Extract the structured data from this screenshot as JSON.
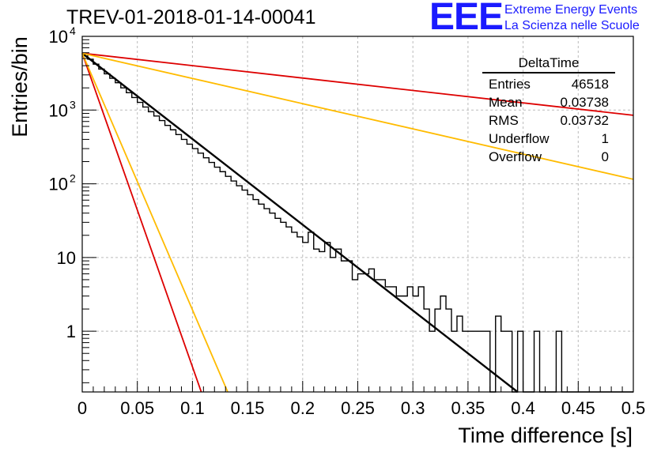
{
  "chart_data": {
    "type": "line",
    "title": "TREV-01-2018-01-14-00041",
    "xlabel": "Time difference [s]",
    "ylabel": "Entries/bin",
    "xlim": [
      0,
      0.5
    ],
    "ylim": [
      0.15,
      10000
    ],
    "yscale": "log",
    "grid": true,
    "x_ticks": [
      "0",
      "0.05",
      "0.1",
      "0.15",
      "0.2",
      "0.25",
      "0.3",
      "0.35",
      "0.4",
      "0.45",
      "0.5"
    ],
    "y_ticks": [
      {
        "value": 1,
        "label": "1"
      },
      {
        "value": 10,
        "label": "10"
      },
      {
        "value": 100,
        "label": "10",
        "sup": "2"
      },
      {
        "value": 1000,
        "label": "10",
        "sup": "3"
      },
      {
        "value": 10000,
        "label": "10",
        "sup": "4"
      }
    ],
    "histogram": {
      "bin_width": 0.005,
      "values": [
        5800,
        4900,
        4200,
        3600,
        3100,
        2700,
        2350,
        2000,
        1720,
        1480,
        1270,
        1100,
        950,
        830,
        720,
        620,
        540,
        465,
        400,
        345,
        300,
        260,
        225,
        195,
        168,
        146,
        126,
        109,
        94,
        82,
        71,
        61,
        53,
        46,
        40,
        34,
        30,
        26,
        22,
        19,
        16,
        22,
        13,
        12,
        16,
        10,
        13,
        9,
        9,
        5,
        6,
        6,
        7,
        5,
        5,
        4,
        4,
        3,
        3,
        4,
        3,
        4,
        2,
        1,
        2,
        3,
        2,
        1,
        1.6,
        1,
        1,
        1,
        1,
        1,
        0,
        1.6,
        1,
        1,
        0,
        1,
        0,
        0,
        1,
        0,
        0,
        0,
        1,
        0,
        0,
        0,
        0,
        0,
        0,
        0,
        0,
        0,
        0,
        0,
        0,
        0
      ]
    },
    "series": [
      {
        "color": "#000000",
        "x": [
          0,
          0.395
        ],
        "y": [
          5900,
          0.15
        ]
      },
      {
        "color": "#dd0000",
        "x": [
          0,
          0.5
        ],
        "y": [
          5900,
          850
        ]
      },
      {
        "color": "#ffbb00",
        "x": [
          0,
          0.5
        ],
        "y": [
          5900,
          115
        ]
      },
      {
        "color": "#dd0000",
        "x": [
          0,
          0.108
        ],
        "y": [
          5900,
          0.15
        ]
      },
      {
        "color": "#ffbb00",
        "x": [
          0,
          0.132
        ],
        "y": [
          5900,
          0.15
        ]
      }
    ]
  },
  "logo": {
    "mark": "EEE",
    "line1": "Extreme Energy Events",
    "line2": "La Scienza nelle Scuole"
  },
  "stats": {
    "title": "DeltaTime",
    "rows": [
      {
        "label": "Entries",
        "value": "46518"
      },
      {
        "label": "Mean",
        "value": "0.03738"
      },
      {
        "label": "RMS",
        "value": "0.03732"
      },
      {
        "label": "Underflow",
        "value": "1"
      },
      {
        "label": "Overflow",
        "value": "0"
      }
    ]
  }
}
